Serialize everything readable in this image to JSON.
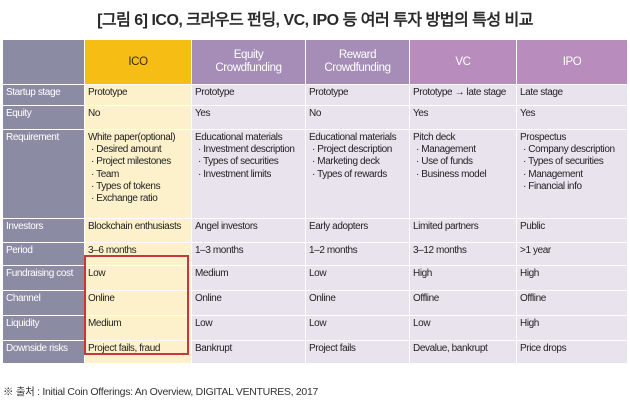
{
  "title": "[그림 6] ICO, 크라우드 펀딩, VC, IPO 등 여러 투자 방법의 특성 비교",
  "columns": [
    "ICO",
    "Equity\nCrowdfunding",
    "Reward\nCrowdfunding",
    "VC",
    "IPO"
  ],
  "rows": {
    "startup_stage": {
      "label": "Startup stage",
      "cells": [
        "Prototype",
        "Prototype",
        "Prototype",
        "Prototype → late stage",
        "Late stage"
      ]
    },
    "equity": {
      "label": "Equity",
      "cells": [
        "No",
        "Yes",
        "No",
        "Yes",
        "Yes"
      ]
    },
    "requirement": {
      "label": "Requirement",
      "ico": {
        "title": "White paper(optional)",
        "items": [
          "· Desired amount",
          "· Project milestones",
          "· Team",
          "· Types of tokens",
          "· Exchange ratio"
        ]
      },
      "equity_cf": {
        "title": "Educational materials",
        "items": [
          "· Investment description",
          "· Types of securities",
          "· Investment limits"
        ]
      },
      "reward_cf": {
        "title": "Educational materials",
        "items": [
          "· Project description",
          "· Marketing deck",
          "· Types of rewards"
        ]
      },
      "vc": {
        "title": "Pitch deck",
        "items": [
          "· Management",
          "· Use of funds",
          "· Business model"
        ]
      },
      "ipo": {
        "title": "Prospectus",
        "items": [
          "· Company description",
          "· Types of securities",
          "· Management",
          "· Financial info"
        ]
      }
    },
    "investors": {
      "label": "Investors",
      "cells": [
        "Blockchain enthusiasts",
        "Angel investors",
        "Early adopters",
        "Limited partners",
        "Public"
      ]
    },
    "period": {
      "label": "Period",
      "cells": [
        "3–6 months",
        "1–3 months",
        "1–2 months",
        "3–12 months",
        ">1 year"
      ]
    },
    "fundraising_cost": {
      "label": "Fundraising cost",
      "cells": [
        "Low",
        "Medium",
        "Low",
        "High",
        "High"
      ]
    },
    "channel": {
      "label": "Channel",
      "cells": [
        "Online",
        "Online",
        "Online",
        "Offline",
        "Offline"
      ]
    },
    "liquidity": {
      "label": "Liquidity",
      "cells": [
        "Medium",
        "Low",
        "Low",
        "Low",
        "High"
      ]
    },
    "downside_risks": {
      "label": "Downside risks",
      "cells": [
        "Project fails, fraud",
        "Bankrupt",
        "Project fails",
        "Devalue, bankrupt",
        "Price drops"
      ]
    }
  },
  "source": "※ 출처 : Initial Coin Offerings: An Overview, DIGITAL VENTURES, 2017",
  "colors": {
    "row_label": "#8b8ba4",
    "ico_header": "#f6be14",
    "ico_cell": "#fdf1cb",
    "crowdfunding_header": "#a58db7",
    "vc_ipo_header": "#b88cbc",
    "other_cell": "#e9e3ee",
    "highlight_outline": "#c7373b"
  }
}
